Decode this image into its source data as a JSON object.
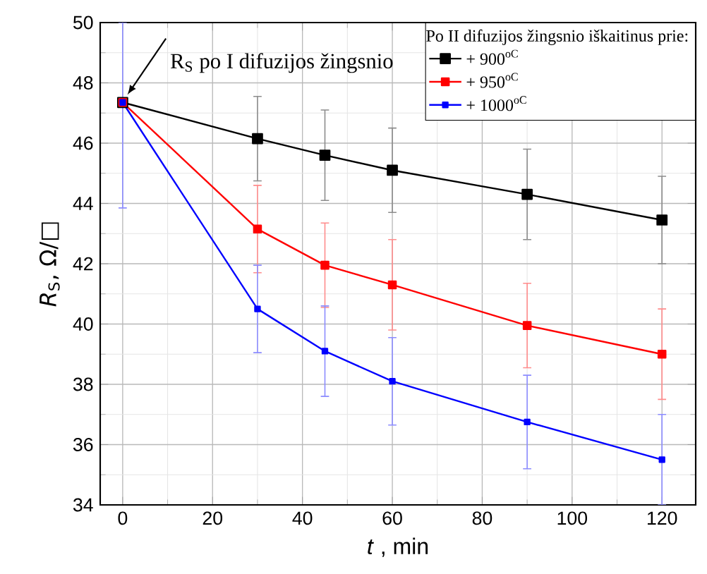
{
  "chart_data": {
    "type": "line",
    "xlabel": "*t* , min",
    "ylabel": "*R*$_{S}$, Ω/□",
    "legend_title": "Po II difuzijos žingsnio iškaitinus prie:",
    "x": [
      0,
      30,
      45,
      60,
      90,
      120
    ],
    "series": [
      {
        "name": "+ 900$^{oC}$",
        "color": "#000000",
        "values": [
          47.35,
          46.15,
          45.6,
          45.1,
          44.3,
          43.45
        ],
        "errors": [
          null,
          1.4,
          1.5,
          1.4,
          1.5,
          1.45
        ]
      },
      {
        "name": "+ 950$^{oC}$",
        "color": "#ff0000",
        "values": [
          47.35,
          43.15,
          41.95,
          41.3,
          39.95,
          39.0
        ],
        "errors": [
          null,
          1.45,
          1.4,
          1.5,
          1.4,
          1.5
        ]
      },
      {
        "name": "+ 1000$^{oC}$",
        "color": "#0000ff",
        "values": [
          47.35,
          40.5,
          39.1,
          38.1,
          36.75,
          35.5
        ],
        "errors": [
          [
            43.85,
            50
          ],
          1.45,
          1.5,
          1.45,
          1.55,
          1.5
        ]
      }
    ],
    "annotations": [
      {
        "text": "R$_{S}$ po I difuzijos žingsnio",
        "x": 0,
        "y": 47.35
      }
    ],
    "xlim": [
      -5,
      127.5
    ],
    "ylim": [
      34,
      50
    ],
    "xticks": [
      0,
      20,
      40,
      60,
      80,
      100,
      120
    ],
    "yticks": [
      34,
      36,
      38,
      40,
      42,
      44,
      46,
      48,
      50
    ],
    "grid": true,
    "legend": "top right",
    "marker": "square",
    "line_style": "solid"
  }
}
